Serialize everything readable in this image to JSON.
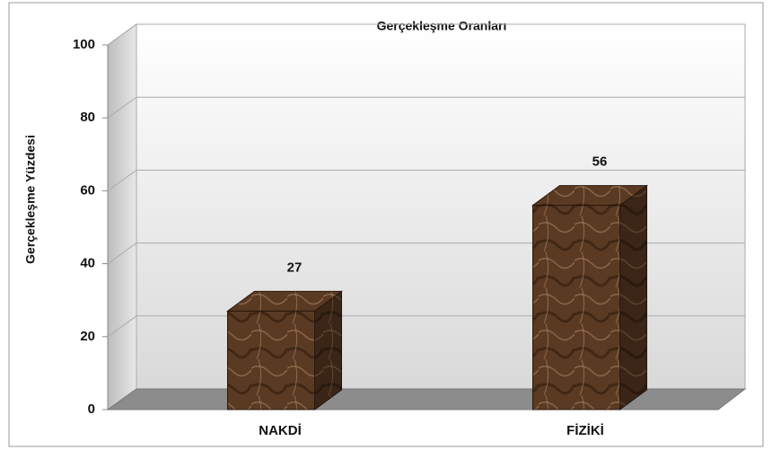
{
  "chart_data": {
    "type": "bar3d",
    "title": "Gerçekleşme Oranları",
    "ylabel": "Gerçekleşme Yüzdesi",
    "categories": [
      "NAKDİ",
      "FİZİKİ"
    ],
    "values": [
      27,
      56
    ],
    "color": "#5b3a24",
    "ylim": [
      0,
      100
    ],
    "yticks": [
      0,
      20,
      40,
      60,
      80,
      100
    ],
    "grid": true
  }
}
